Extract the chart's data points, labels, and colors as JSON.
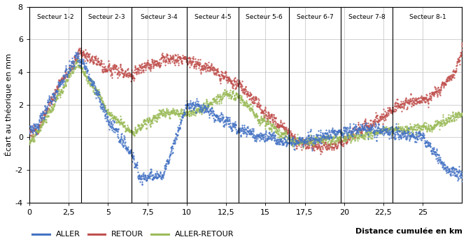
{
  "xlim": [
    0,
    27.5
  ],
  "ylim": [
    -4,
    8
  ],
  "yticks": [
    -4,
    -2,
    0,
    2,
    4,
    6,
    8
  ],
  "xticks": [
    0,
    2.5,
    5,
    7.5,
    10,
    12.5,
    15,
    17.5,
    20,
    22.5,
    25
  ],
  "xtick_labels": [
    "0",
    "2,5",
    "5",
    "7,5",
    "10",
    "12,5",
    "15",
    "17,5",
    "20",
    "22,5",
    "25"
  ],
  "xlabel": "Distance cumulée en km",
  "ylabel": "Écart au théorique en mm",
  "sector_boundaries": [
    0.0,
    3.3,
    6.5,
    10.0,
    13.3,
    16.5,
    19.8,
    23.1,
    27.5
  ],
  "sector_labels": [
    "Secteur 1-2",
    "Secteur 2-3",
    "Secteur 3-4",
    "Secteur 4-5",
    "Secteur 5-6",
    "Secteur 6-7",
    "Secteur 7-8",
    "Secteur 8-1"
  ],
  "color_aller": "#4472C4",
  "color_retour": "#C0504D",
  "color_aller_retour": "#9BBB59",
  "legend_labels": [
    "ALLER",
    "RETOUR",
    "ALLER-RETOUR"
  ],
  "background_color": "#FFFFFF",
  "grid_color": "#BFBFBF"
}
